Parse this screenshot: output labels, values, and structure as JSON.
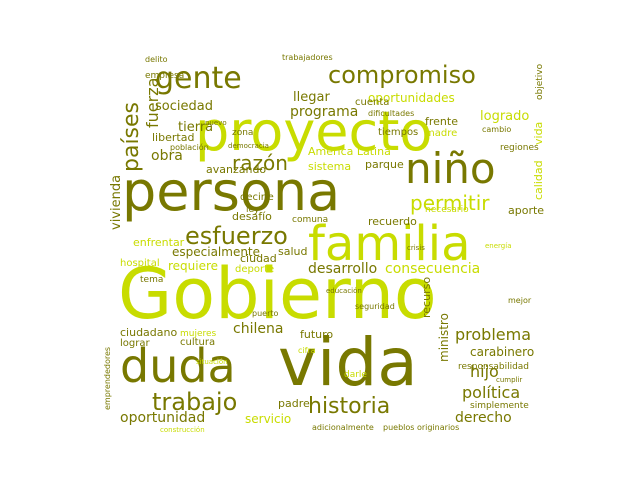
{
  "palette": {
    "dark": "#787800",
    "light": "#c8dc00",
    "background": "#ffffff"
  },
  "cloud": {
    "words": [
      {
        "text": "Gobierno",
        "tone": "light"
      },
      {
        "text": "vida",
        "tone": "dark"
      },
      {
        "text": "proyecto",
        "tone": "light"
      },
      {
        "text": "persona",
        "tone": "dark"
      },
      {
        "text": "familia",
        "tone": "light"
      },
      {
        "text": "duda",
        "tone": "dark"
      },
      {
        "text": "niño",
        "tone": "dark"
      },
      {
        "text": "gente",
        "tone": "dark"
      },
      {
        "text": "compromiso",
        "tone": "dark"
      },
      {
        "text": "trabajo",
        "tone": "dark"
      },
      {
        "text": "historia",
        "tone": "dark"
      },
      {
        "text": "esfuerzo",
        "tone": "dark"
      },
      {
        "text": "países",
        "tone": "dark"
      },
      {
        "text": "razón",
        "tone": "dark"
      },
      {
        "text": "permitir",
        "tone": "light"
      },
      {
        "text": "problema",
        "tone": "dark"
      },
      {
        "text": "desarrollo",
        "tone": "dark"
      },
      {
        "text": "consecuencia",
        "tone": "light"
      },
      {
        "text": "chilena",
        "tone": "dark"
      },
      {
        "text": "política",
        "tone": "dark"
      },
      {
        "text": "derecho",
        "tone": "dark"
      },
      {
        "text": "oportunidad",
        "tone": "dark"
      },
      {
        "text": "hijo",
        "tone": "dark"
      },
      {
        "text": "fuerza",
        "tone": "dark"
      },
      {
        "text": "vivienda",
        "tone": "dark"
      },
      {
        "text": "sociedad",
        "tone": "dark"
      },
      {
        "text": "programa",
        "tone": "dark"
      },
      {
        "text": "oportunidades",
        "tone": "light"
      },
      {
        "text": "llegar",
        "tone": "dark"
      },
      {
        "text": "logrado",
        "tone": "light"
      },
      {
        "text": "obra",
        "tone": "dark"
      },
      {
        "text": "tierra",
        "tone": "dark"
      },
      {
        "text": "América Latina",
        "tone": "light"
      },
      {
        "text": "sistema",
        "tone": "light"
      },
      {
        "text": "parque",
        "tone": "dark"
      },
      {
        "text": "avanzando",
        "tone": "dark"
      },
      {
        "text": "especialmente",
        "tone": "dark"
      },
      {
        "text": "enfrentar",
        "tone": "light"
      },
      {
        "text": "requiere",
        "tone": "light"
      },
      {
        "text": "ciudad",
        "tone": "dark"
      },
      {
        "text": "deporte",
        "tone": "light"
      },
      {
        "text": "desafío",
        "tone": "dark"
      },
      {
        "text": "recuerdo",
        "tone": "dark"
      },
      {
        "text": "aporte",
        "tone": "dark"
      },
      {
        "text": "salud",
        "tone": "dark"
      },
      {
        "text": "ciudadano",
        "tone": "dark"
      },
      {
        "text": "futuro",
        "tone": "dark"
      },
      {
        "text": "cultura",
        "tone": "dark"
      },
      {
        "text": "mujeres",
        "tone": "light"
      },
      {
        "text": "carabinero",
        "tone": "dark"
      },
      {
        "text": "responsabilidad",
        "tone": "dark"
      },
      {
        "text": "servicio",
        "tone": "light"
      },
      {
        "text": "padre",
        "tone": "dark"
      },
      {
        "text": "simplemente",
        "tone": "dark"
      },
      {
        "text": "adicionalmente",
        "tone": "dark"
      },
      {
        "text": "pueblos originarios",
        "tone": "dark"
      },
      {
        "text": "ministro",
        "tone": "dark"
      },
      {
        "text": "recurso",
        "tone": "dark"
      },
      {
        "text": "cuenta",
        "tone": "dark"
      },
      {
        "text": "frente",
        "tone": "dark"
      },
      {
        "text": "madre",
        "tone": "light"
      },
      {
        "text": "tiempos",
        "tone": "dark"
      },
      {
        "text": "libertad",
        "tone": "dark"
      },
      {
        "text": "empresa",
        "tone": "dark"
      },
      {
        "text": "calidad",
        "tone": "light"
      },
      {
        "text": "vida",
        "tone": "light"
      },
      {
        "text": "objetivo",
        "tone": "dark"
      },
      {
        "text": "comuna",
        "tone": "dark"
      },
      {
        "text": "decirle",
        "tone": "dark"
      },
      {
        "text": "hospital",
        "tone": "light"
      },
      {
        "text": "regiones",
        "tone": "dark"
      },
      {
        "text": "necesario",
        "tone": "light"
      },
      {
        "text": "trabajadores",
        "tone": "dark"
      },
      {
        "text": "delito",
        "tone": "dark"
      },
      {
        "text": "situación",
        "tone": "light"
      },
      {
        "text": "cifra",
        "tone": "light"
      },
      {
        "text": "darle",
        "tone": "light"
      },
      {
        "text": "seguridad",
        "tone": "dark"
      },
      {
        "text": "tema",
        "tone": "dark"
      },
      {
        "text": "lograr",
        "tone": "dark"
      },
      {
        "text": "dificultades",
        "tone": "dark"
      },
      {
        "text": "cambio",
        "tone": "dark"
      },
      {
        "text": "zona",
        "tone": "dark"
      },
      {
        "text": "población",
        "tone": "dark"
      },
      {
        "text": "democracia",
        "tone": "dark"
      },
      {
        "text": "cumplir",
        "tone": "dark"
      },
      {
        "text": "mejor",
        "tone": "dark"
      },
      {
        "text": "ley",
        "tone": "dark"
      },
      {
        "text": "crisis",
        "tone": "dark"
      },
      {
        "text": "energía",
        "tone": "light"
      },
      {
        "text": "nuevo",
        "tone": "dark"
      },
      {
        "text": "puerto",
        "tone": "dark"
      },
      {
        "text": "emprendedores",
        "tone": "dark"
      },
      {
        "text": "construcción",
        "tone": "light"
      },
      {
        "text": "educación",
        "tone": "dark"
      }
    ]
  }
}
